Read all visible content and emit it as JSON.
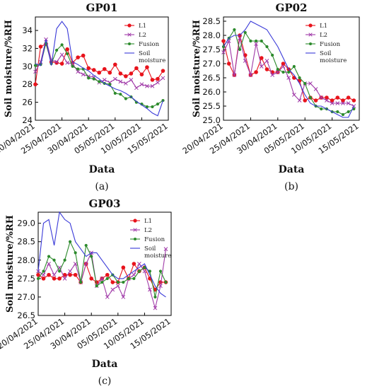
{
  "colors": {
    "L1": "#e8131c",
    "L2": "#a03aa8",
    "Fusion": "#2c8a2c",
    "Soil moisture": "#3a3ad8"
  },
  "chart_data": [
    {
      "type": "line",
      "title": "GP01",
      "panel_label": "(a)",
      "xlabel": "Data",
      "ylabel": "Soil moisture/%RH",
      "x_tick_labels": [
        "20/04/2021",
        "25/04/2021",
        "30/04/2021",
        "05/05/2021",
        "10/05/2021",
        "15/05/2021"
      ],
      "x_tick_positions": [
        0,
        5,
        10,
        15,
        20,
        25
      ],
      "xlim": [
        0,
        25
      ],
      "ylim": [
        24,
        35.5
      ],
      "y_ticks": [
        24,
        26,
        28,
        30,
        32,
        34
      ],
      "legend_position": "top-right",
      "legend": [
        "L1",
        "L2",
        "Fusion",
        "Soil\nmoisture"
      ],
      "series": [
        {
          "name": "L1",
          "x": [
            0,
            1,
            2,
            3,
            4,
            5,
            6,
            7,
            8,
            9,
            10,
            11,
            12,
            13,
            14,
            15,
            16,
            17,
            18,
            19,
            20,
            21,
            22,
            23,
            24
          ],
          "y": [
            28.0,
            32.2,
            32.5,
            30.5,
            30.4,
            30.3,
            31.9,
            30.4,
            31.0,
            31.2,
            29.8,
            29.6,
            29.3,
            29.7,
            29.3,
            30.2,
            29.2,
            28.9,
            29.2,
            29.8,
            29.1,
            29.9,
            28.5,
            28.6,
            29.5
          ]
        },
        {
          "name": "L2",
          "x": [
            0,
            1,
            2,
            3,
            4,
            5,
            6,
            7,
            8,
            9,
            10,
            11,
            12,
            13,
            14,
            15,
            16,
            17,
            18,
            19,
            20,
            21,
            22,
            23,
            24
          ],
          "y": [
            29.4,
            30.5,
            33.0,
            30.7,
            30.5,
            31.3,
            30.4,
            30.3,
            29.4,
            29.1,
            28.9,
            28.8,
            28.2,
            28.5,
            28.2,
            28.6,
            28.3,
            28.1,
            28.5,
            27.6,
            28.0,
            27.8,
            27.8,
            28.2,
            28.7
          ]
        },
        {
          "name": "Fusion",
          "x": [
            0,
            1,
            2,
            3,
            4,
            5,
            6,
            7,
            8,
            9,
            10,
            11,
            12,
            13,
            14,
            15,
            16,
            17,
            18,
            19,
            20,
            21,
            22,
            23,
            24
          ],
          "y": [
            30.1,
            30.2,
            32.6,
            30.3,
            31.8,
            32.4,
            31.4,
            30.0,
            29.7,
            29.7,
            28.7,
            28.6,
            28.3,
            28.1,
            28.0,
            27.0,
            26.9,
            26.4,
            26.6,
            26.0,
            25.8,
            25.5,
            25.5,
            25.8,
            26.2
          ]
        },
        {
          "name": "Soil\nmoisture",
          "x": [
            0,
            1,
            2,
            3,
            4,
            5,
            6,
            7,
            8,
            9,
            10,
            11,
            12,
            13,
            14,
            15,
            16,
            17,
            18,
            19,
            20,
            21,
            22,
            23,
            24
          ],
          "y": [
            30.3,
            30.1,
            33.0,
            30.1,
            34.2,
            35.0,
            34.2,
            30.5,
            30.2,
            29.8,
            29.5,
            29.0,
            28.6,
            28.1,
            27.8,
            27.5,
            27.3,
            27.0,
            26.6,
            26.1,
            25.7,
            25.3,
            24.8,
            24.5,
            26.2
          ]
        }
      ]
    },
    {
      "type": "line",
      "title": "GP02",
      "panel_label": "(b)",
      "xlabel": "Data",
      "ylabel": "Soil moisture/%RH",
      "x_tick_labels": [
        "20/04/2021",
        "25/04/2021",
        "30/04/2021",
        "05/05/2021",
        "10/05/2021",
        "15/05/2021"
      ],
      "x_tick_positions": [
        0,
        5,
        10,
        15,
        20,
        25
      ],
      "xlim": [
        0,
        25
      ],
      "ylim": [
        25.0,
        28.65
      ],
      "y_ticks": [
        25.0,
        25.5,
        26.0,
        26.5,
        27.0,
        27.5,
        28.0,
        28.5
      ],
      "legend_position": "top-right",
      "legend": [
        "L1",
        "L2",
        "Fusion",
        "Soil\nmoisture"
      ],
      "series": [
        {
          "name": "L1",
          "x": [
            0,
            1,
            2,
            3,
            4,
            5,
            6,
            7,
            8,
            9,
            10,
            11,
            12,
            13,
            14,
            15,
            16,
            17,
            18,
            19,
            20,
            21,
            22,
            23,
            24
          ],
          "y": [
            27.8,
            27.0,
            26.6,
            28.0,
            27.3,
            26.6,
            26.7,
            27.2,
            26.8,
            26.7,
            26.7,
            27.0,
            26.8,
            26.5,
            26.4,
            25.7,
            25.8,
            25.7,
            25.8,
            25.8,
            25.7,
            25.8,
            25.7,
            25.8,
            25.7
          ]
        },
        {
          "name": "L2",
          "x": [
            0,
            1,
            2,
            3,
            4,
            5,
            6,
            7,
            8,
            9,
            10,
            11,
            12,
            13,
            14,
            15,
            16,
            17,
            18,
            19,
            20,
            21,
            22,
            23,
            24
          ],
          "y": [
            27.4,
            27.8,
            26.6,
            27.9,
            27.1,
            26.6,
            27.7,
            26.9,
            27.1,
            26.6,
            26.7,
            26.9,
            26.5,
            25.9,
            25.7,
            26.3,
            26.3,
            26.1,
            25.8,
            25.7,
            25.6,
            25.6,
            25.6,
            25.6,
            25.5
          ]
        },
        {
          "name": "Fusion",
          "x": [
            0,
            1,
            2,
            3,
            4,
            5,
            6,
            7,
            8,
            9,
            10,
            11,
            12,
            13,
            14,
            15,
            16,
            17,
            18,
            19,
            20,
            21,
            22,
            23,
            24
          ],
          "y": [
            27.6,
            27.9,
            28.2,
            27.5,
            28.1,
            27.8,
            27.8,
            27.8,
            27.6,
            27.3,
            26.8,
            26.7,
            26.7,
            26.9,
            26.5,
            26.3,
            25.8,
            25.5,
            25.4,
            25.4,
            25.3,
            25.3,
            25.2,
            25.3,
            25.4
          ]
        },
        {
          "name": "Soil\nmoisture",
          "x": [
            0,
            1,
            2,
            3,
            4,
            5,
            6,
            7,
            8,
            9,
            10,
            11,
            12,
            13,
            14,
            15,
            16,
            17,
            18,
            19,
            20,
            21,
            22,
            23,
            24
          ],
          "y": [
            27.6,
            27.9,
            28.0,
            28.0,
            28.2,
            28.5,
            28.4,
            28.3,
            28.2,
            27.9,
            27.6,
            27.2,
            26.8,
            26.6,
            26.3,
            25.9,
            25.6,
            25.5,
            25.5,
            25.4,
            25.3,
            25.2,
            25.1,
            25.1,
            25.5
          ]
        }
      ]
    },
    {
      "type": "line",
      "title": "GP03",
      "panel_label": "(c)",
      "xlabel": "Data",
      "ylabel": "Soil moisture/%RH",
      "x_tick_labels": [
        "20/04/2021",
        "25/04/2021",
        "30/04/2021",
        "05/05/2021",
        "10/05/2021",
        "15/05/2021"
      ],
      "x_tick_positions": [
        0,
        5,
        10,
        15,
        20,
        25
      ],
      "xlim": [
        0,
        25
      ],
      "ylim": [
        26.5,
        29.3
      ],
      "y_ticks": [
        26.5,
        27.0,
        27.5,
        28.0,
        28.5,
        29.0
      ],
      "legend_position": "top-right",
      "legend": [
        "L1",
        "L2",
        "Fusion",
        "Soil\nmoisture"
      ],
      "series": [
        {
          "name": "L1",
          "x": [
            0,
            1,
            2,
            3,
            4,
            5,
            6,
            7,
            8,
            9,
            10,
            11,
            12,
            13,
            14,
            15,
            16,
            17,
            18,
            19,
            20,
            21,
            22,
            23,
            24
          ],
          "y": [
            27.6,
            27.5,
            27.6,
            27.5,
            27.5,
            27.6,
            27.6,
            27.6,
            27.4,
            27.9,
            27.5,
            27.4,
            27.5,
            27.6,
            27.4,
            27.4,
            27.8,
            27.5,
            27.9,
            27.7,
            27.8,
            27.5,
            27.2,
            27.4,
            27.4
          ]
        },
        {
          "name": "L2",
          "x": [
            0,
            1,
            2,
            3,
            4,
            5,
            6,
            7,
            8,
            9,
            10,
            11,
            12,
            13,
            14,
            15,
            16,
            17,
            18,
            19,
            20,
            21,
            22,
            23,
            24
          ],
          "y": [
            27.7,
            27.6,
            27.9,
            27.6,
            27.8,
            27.5,
            27.7,
            27.9,
            27.4,
            27.9,
            28.2,
            27.3,
            27.5,
            27.0,
            27.2,
            27.3,
            27.0,
            27.5,
            27.6,
            27.9,
            27.7,
            27.2,
            26.7,
            27.3,
            28.3
          ]
        },
        {
          "name": "Fusion",
          "x": [
            0,
            1,
            2,
            3,
            4,
            5,
            6,
            7,
            8,
            9,
            10,
            11,
            12,
            13,
            14,
            15,
            16,
            17,
            18,
            19,
            20,
            21,
            22,
            23,
            24
          ],
          "y": [
            27.5,
            27.7,
            28.1,
            28.0,
            27.7,
            28.0,
            28.5,
            28.2,
            27.4,
            28.4,
            28.1,
            27.3,
            27.4,
            27.5,
            27.6,
            27.4,
            27.4,
            27.5,
            27.5,
            27.7,
            27.8,
            27.7,
            27.0,
            27.7,
            27.4
          ]
        },
        {
          "name": "Soil\nmoisture",
          "x": [
            0,
            1,
            2,
            3,
            4,
            5,
            6,
            7,
            8,
            9,
            10,
            11,
            12,
            13,
            14,
            15,
            16,
            17,
            18,
            19,
            20,
            21,
            22,
            23,
            24
          ],
          "y": [
            27.7,
            29.0,
            29.1,
            28.4,
            29.3,
            29.1,
            29.0,
            28.5,
            28.3,
            28.1,
            28.2,
            28.2,
            28.0,
            27.8,
            27.6,
            27.5,
            27.5,
            27.6,
            27.7,
            27.8,
            27.9,
            27.6,
            27.3,
            27.1,
            27.0
          ]
        }
      ]
    }
  ]
}
